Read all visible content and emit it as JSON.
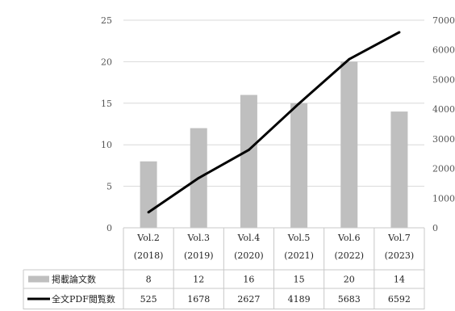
{
  "chart_data": {
    "type": "bar",
    "categories": [
      [
        "Vol.2",
        "(2018)"
      ],
      [
        "Vol.3",
        "(2019)"
      ],
      [
        "Vol.4",
        "(2020)"
      ],
      [
        "Vol.5",
        "(2021)"
      ],
      [
        "Vol.6",
        "(2022)"
      ],
      [
        "Vol.7",
        "(2023)"
      ]
    ],
    "series": [
      {
        "name": "掲載論文数",
        "type": "bar",
        "axis": "left",
        "color": "#bfbfbf",
        "values": [
          8,
          12,
          16,
          15,
          20,
          14
        ],
        "labels": [
          "8",
          "12",
          "16",
          "15",
          "20",
          "14"
        ]
      },
      {
        "name": "全文PDF閲覧数",
        "type": "line",
        "axis": "right",
        "color": "#000000",
        "values": [
          525,
          1678,
          2627,
          4189,
          5683,
          6592
        ],
        "labels": [
          "525",
          "1678",
          "2627",
          "4189",
          "5683",
          "6592"
        ]
      }
    ],
    "y_left": {
      "min": 0,
      "max": 25,
      "ticks": [
        "0",
        "5",
        "10",
        "15",
        "20",
        "25"
      ]
    },
    "y_right": {
      "min": 0,
      "max": 7000,
      "ticks": [
        "0",
        "1000",
        "2000",
        "3000",
        "4000",
        "5000",
        "6000",
        "7000"
      ]
    },
    "grid": true,
    "data_table": true
  }
}
